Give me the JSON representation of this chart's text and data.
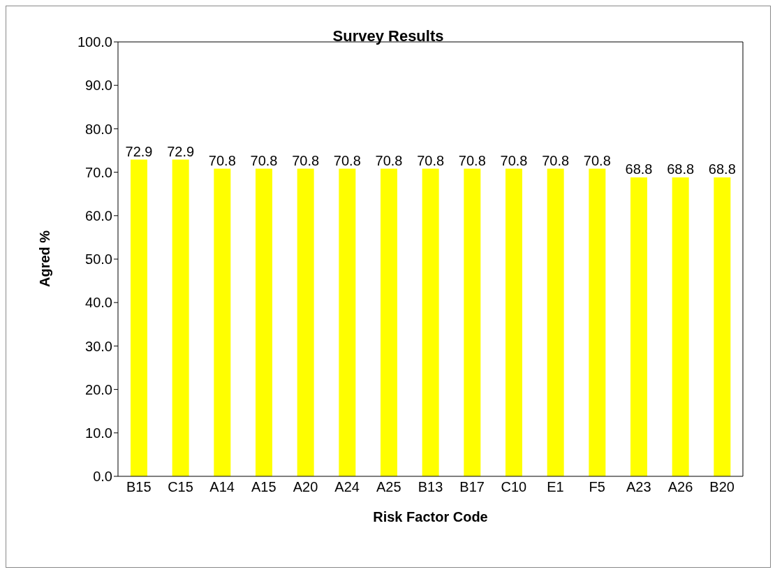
{
  "chart_data": {
    "type": "bar",
    "title": "Survey Results",
    "xlabel": "Risk Factor Code",
    "ylabel": "Agred %",
    "categories": [
      "B15",
      "C15",
      "A14",
      "A15",
      "A20",
      "A24",
      "A25",
      "B13",
      "B17",
      "C10",
      "E1",
      "F5",
      "A23",
      "A26",
      "B20"
    ],
    "values": [
      72.9,
      72.9,
      70.8,
      70.8,
      70.8,
      70.8,
      70.8,
      70.8,
      70.8,
      70.8,
      70.8,
      70.8,
      68.8,
      68.8,
      68.8
    ],
    "color": "#ffff00",
    "ylim": [
      0,
      100
    ],
    "yticks": [
      {
        "value": 0,
        "label": "0.0"
      },
      {
        "value": 10,
        "label": "10.0"
      },
      {
        "value": 20,
        "label": "20.0"
      },
      {
        "value": 30,
        "label": "30.0"
      },
      {
        "value": 40,
        "label": "40.0"
      },
      {
        "value": 50,
        "label": "50.0"
      },
      {
        "value": 60,
        "label": "60.0"
      },
      {
        "value": 70,
        "label": "70.0"
      },
      {
        "value": 80,
        "label": "80.0"
      },
      {
        "value": 90,
        "label": "90.0"
      },
      {
        "value": 100,
        "label": "100.0"
      }
    ],
    "data_labels": true,
    "grid": false,
    "legend": false
  }
}
